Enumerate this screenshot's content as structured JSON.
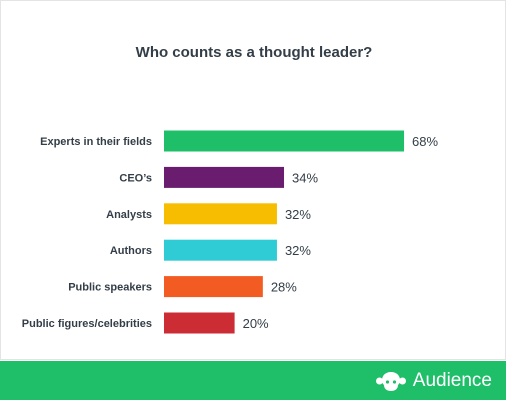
{
  "chart_data": {
    "type": "bar",
    "orientation": "horizontal",
    "title": "Who counts as a thought leader?",
    "categories": [
      "Experts in their fields",
      "CEO’s",
      "Analysts",
      "Authors",
      "Public speakers",
      "Public figures/celebrities"
    ],
    "values": [
      68,
      34,
      32,
      32,
      28,
      20
    ],
    "value_labels": [
      "68%",
      "34%",
      "32%",
      "32%",
      "28%",
      "20%"
    ],
    "colors": [
      "#1fbf6a",
      "#6a1d6f",
      "#f7bd00",
      "#30ccd6",
      "#f25c22",
      "#cc2d35"
    ],
    "xlim": [
      0,
      100
    ],
    "xlabel": "",
    "ylabel": "",
    "grid": false,
    "legend": false
  },
  "footer": {
    "brand": "Audience",
    "background_color": "#1fbf6a",
    "logo_icon": "monkey-logo-icon"
  }
}
